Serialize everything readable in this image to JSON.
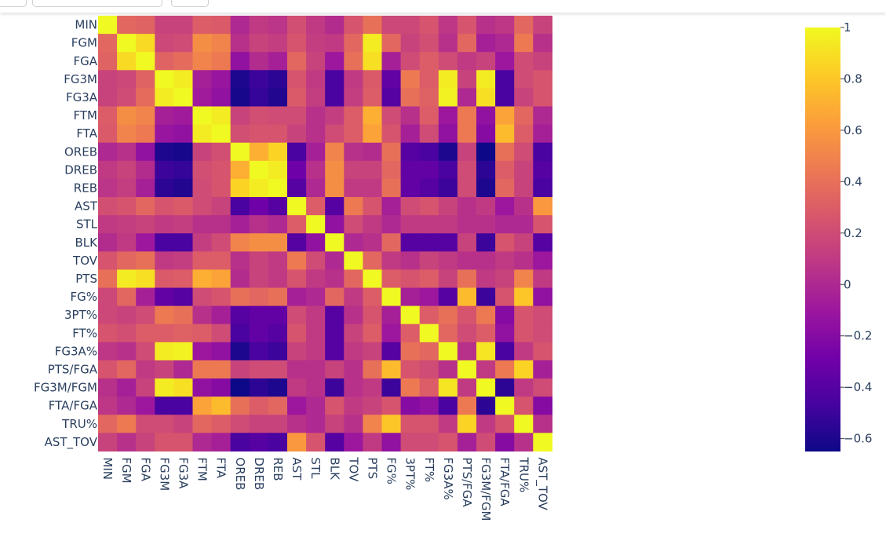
{
  "chart_data": {
    "type": "heatmap",
    "title": "",
    "xlabel": "",
    "ylabel": "",
    "colorscale": "plasma",
    "zmin": -0.65,
    "zmax": 1.0,
    "labels": [
      "MIN",
      "FGM",
      "FGA",
      "FG3M",
      "FG3A",
      "FTM",
      "FTA",
      "OREB",
      "DREB",
      "REB",
      "AST",
      "STL",
      "BLK",
      "TOV",
      "PTS",
      "FG%",
      "3PT%",
      "FT%",
      "FG3A%",
      "PTS/FGA",
      "FG3M/FGM",
      "FTA/FGA",
      "TRU%",
      "AST_TOV"
    ],
    "colorbar": {
      "ticks": [
        1,
        0.8,
        0.6,
        0.4,
        0.2,
        0,
        -0.2,
        -0.4,
        -0.6
      ],
      "tick_labels": [
        "1",
        "0.8",
        "0.6",
        "0.4",
        "0.2",
        "0",
        "−0.2",
        "−0.4",
        "−0.6"
      ]
    },
    "z": [
      [
        1.0,
        0.35,
        0.33,
        0.15,
        0.15,
        0.3,
        0.28,
        0.0,
        0.1,
        0.07,
        0.22,
        0.1,
        0.02,
        0.25,
        0.4,
        0.18,
        0.18,
        0.25,
        0.08,
        0.25,
        0.05,
        0.08,
        0.35,
        0.15
      ],
      [
        0.35,
        1.0,
        0.88,
        0.18,
        0.2,
        0.55,
        0.5,
        0.05,
        0.15,
        0.12,
        0.25,
        0.12,
        0.1,
        0.35,
        0.95,
        0.35,
        0.15,
        0.22,
        0.05,
        0.35,
        -0.05,
        0.0,
        0.45,
        0.05
      ],
      [
        0.33,
        0.88,
        1.0,
        0.33,
        0.38,
        0.5,
        0.45,
        -0.15,
        0.02,
        -0.05,
        0.35,
        0.15,
        -0.1,
        0.4,
        0.9,
        -0.05,
        0.2,
        0.3,
        0.2,
        0.1,
        0.15,
        -0.1,
        0.2,
        0.15
      ],
      [
        0.15,
        0.18,
        0.33,
        1.0,
        0.95,
        -0.05,
        -0.12,
        -0.6,
        -0.5,
        -0.55,
        0.25,
        0.1,
        -0.45,
        0.1,
        0.28,
        -0.35,
        0.45,
        0.3,
        0.95,
        0.15,
        0.95,
        -0.45,
        0.2,
        0.25
      ],
      [
        0.15,
        0.2,
        0.38,
        0.95,
        1.0,
        -0.08,
        -0.15,
        -0.62,
        -0.52,
        -0.58,
        0.28,
        0.12,
        -0.45,
        0.12,
        0.3,
        -0.4,
        0.4,
        0.32,
        0.97,
        0.0,
        0.9,
        -0.45,
        0.15,
        0.25
      ],
      [
        0.3,
        0.55,
        0.5,
        -0.05,
        -0.08,
        1.0,
        0.95,
        0.15,
        0.22,
        0.2,
        0.2,
        0.05,
        0.12,
        0.3,
        0.7,
        0.2,
        0.05,
        0.3,
        -0.1,
        0.45,
        -0.15,
        0.65,
        0.35,
        0.0
      ],
      [
        0.28,
        0.5,
        0.45,
        -0.12,
        -0.15,
        0.95,
        1.0,
        0.22,
        0.25,
        0.25,
        0.15,
        0.05,
        0.2,
        0.3,
        0.65,
        0.25,
        -0.05,
        0.2,
        -0.15,
        0.45,
        -0.2,
        0.75,
        0.3,
        -0.05
      ],
      [
        0.0,
        0.05,
        -0.15,
        -0.6,
        -0.62,
        0.15,
        0.22,
        1.0,
        0.7,
        0.85,
        -0.45,
        -0.05,
        0.5,
        0.05,
        0.02,
        0.4,
        -0.4,
        -0.45,
        -0.6,
        0.15,
        -0.65,
        0.4,
        0.2,
        -0.45
      ],
      [
        0.1,
        0.15,
        0.02,
        -0.5,
        -0.52,
        0.22,
        0.25,
        0.7,
        1.0,
        0.95,
        -0.3,
        0.05,
        0.55,
        0.15,
        0.15,
        0.35,
        -0.35,
        -0.35,
        -0.45,
        0.2,
        -0.55,
        0.3,
        0.15,
        -0.4
      ],
      [
        0.07,
        0.12,
        -0.05,
        -0.55,
        -0.58,
        0.2,
        0.25,
        0.85,
        0.95,
        1.0,
        -0.4,
        0.0,
        0.55,
        0.1,
        0.1,
        0.4,
        -0.35,
        -0.4,
        -0.5,
        0.2,
        -0.6,
        0.35,
        0.15,
        -0.45
      ],
      [
        0.22,
        0.25,
        0.35,
        0.25,
        0.28,
        0.2,
        0.15,
        -0.45,
        -0.3,
        -0.4,
        1.0,
        0.3,
        -0.4,
        0.45,
        0.25,
        -0.05,
        0.2,
        0.25,
        0.15,
        0.05,
        0.1,
        -0.1,
        0.05,
        0.6
      ],
      [
        0.1,
        0.12,
        0.15,
        0.1,
        0.12,
        0.05,
        0.05,
        -0.05,
        0.05,
        0.0,
        0.3,
        1.0,
        -0.15,
        0.2,
        0.1,
        0.0,
        0.1,
        0.1,
        0.1,
        0.05,
        0.05,
        0.0,
        0.0,
        0.25
      ],
      [
        0.02,
        0.1,
        -0.1,
        -0.45,
        -0.45,
        0.12,
        0.2,
        0.5,
        0.55,
        0.55,
        -0.4,
        -0.15,
        1.0,
        0.0,
        0.05,
        0.35,
        -0.4,
        -0.4,
        -0.4,
        0.15,
        -0.5,
        0.25,
        0.15,
        -0.4
      ],
      [
        0.25,
        0.35,
        0.4,
        0.1,
        0.12,
        0.3,
        0.3,
        0.05,
        0.15,
        0.1,
        0.45,
        0.2,
        0.0,
        1.0,
        0.35,
        0.1,
        0.05,
        0.15,
        0.1,
        0.05,
        0.05,
        0.1,
        0.05,
        -0.1
      ],
      [
        0.4,
        0.95,
        0.9,
        0.28,
        0.3,
        0.7,
        0.65,
        0.02,
        0.15,
        0.1,
        0.25,
        0.1,
        0.05,
        0.35,
        1.0,
        0.3,
        0.25,
        0.3,
        0.15,
        0.4,
        0.1,
        0.15,
        0.5,
        0.1
      ],
      [
        0.18,
        0.35,
        -0.05,
        -0.35,
        -0.4,
        0.2,
        0.25,
        0.4,
        0.35,
        0.4,
        -0.05,
        0.0,
        0.35,
        0.1,
        0.3,
        1.0,
        -0.05,
        -0.1,
        -0.4,
        0.75,
        -0.5,
        0.25,
        0.8,
        -0.15
      ],
      [
        0.18,
        0.15,
        0.2,
        0.45,
        0.4,
        0.05,
        -0.05,
        -0.4,
        -0.35,
        -0.35,
        0.2,
        0.1,
        -0.4,
        0.05,
        0.25,
        -0.05,
        1.0,
        0.3,
        0.4,
        0.25,
        0.45,
        -0.2,
        0.25,
        0.2
      ],
      [
        0.25,
        0.22,
        0.3,
        0.3,
        0.32,
        0.3,
        0.2,
        -0.45,
        -0.35,
        -0.4,
        0.25,
        0.1,
        -0.4,
        0.15,
        0.3,
        -0.1,
        0.3,
        1.0,
        0.35,
        0.2,
        0.3,
        -0.15,
        0.25,
        0.2
      ],
      [
        0.08,
        0.05,
        0.2,
        0.95,
        0.97,
        -0.1,
        -0.15,
        -0.6,
        -0.45,
        -0.5,
        0.15,
        0.1,
        -0.4,
        0.1,
        0.15,
        -0.4,
        0.4,
        0.35,
        1.0,
        0.05,
        0.92,
        -0.45,
        0.1,
        0.25
      ],
      [
        0.25,
        0.35,
        0.1,
        0.15,
        0.0,
        0.45,
        0.45,
        0.15,
        0.2,
        0.2,
        0.05,
        0.05,
        0.15,
        0.05,
        0.4,
        0.75,
        0.25,
        0.2,
        0.05,
        1.0,
        0.1,
        0.45,
        0.85,
        -0.05
      ],
      [
        0.05,
        -0.05,
        0.15,
        0.95,
        0.9,
        -0.15,
        -0.2,
        -0.65,
        -0.55,
        -0.6,
        0.1,
        0.05,
        -0.5,
        0.05,
        0.1,
        -0.5,
        0.45,
        0.3,
        0.92,
        0.1,
        1.0,
        -0.55,
        0.1,
        0.2
      ],
      [
        0.08,
        0.0,
        -0.1,
        -0.45,
        -0.45,
        0.65,
        0.75,
        0.4,
        0.3,
        0.35,
        -0.1,
        0.0,
        0.25,
        0.1,
        0.15,
        0.25,
        -0.2,
        -0.15,
        -0.45,
        0.45,
        -0.55,
        1.0,
        0.25,
        -0.2
      ],
      [
        0.35,
        0.45,
        0.2,
        0.2,
        0.15,
        0.35,
        0.3,
        0.2,
        0.15,
        0.15,
        0.05,
        0.0,
        0.15,
        0.05,
        0.5,
        0.8,
        0.25,
        0.25,
        0.1,
        0.85,
        0.1,
        0.25,
        1.0,
        0.05
      ],
      [
        0.15,
        0.05,
        0.15,
        0.25,
        0.25,
        0.0,
        -0.05,
        -0.45,
        -0.4,
        -0.45,
        0.6,
        0.25,
        -0.4,
        -0.1,
        0.1,
        -0.15,
        0.2,
        0.2,
        0.25,
        -0.05,
        0.2,
        -0.2,
        0.05,
        1.0
      ]
    ]
  }
}
